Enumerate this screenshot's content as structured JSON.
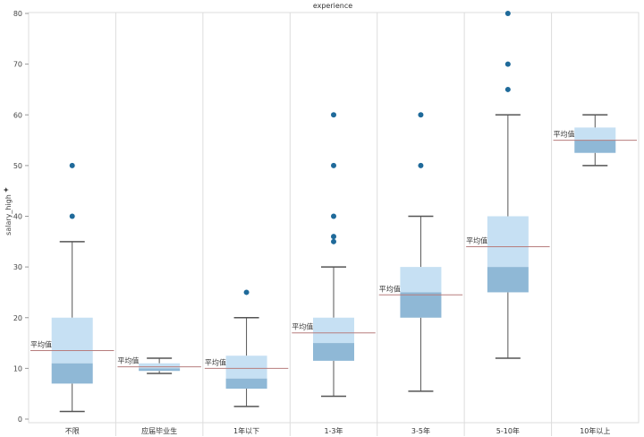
{
  "chart_data": {
    "type": "box",
    "title": "experience",
    "ylabel": "salary_high",
    "ylim": [
      0,
      80
    ],
    "yticks": [
      "0",
      "10",
      "20",
      "30",
      "40",
      "50",
      "60",
      "70",
      "80"
    ],
    "categories": [
      "不限",
      "应届毕业生",
      "1年以下",
      "1-3年",
      "3-5年",
      "5-10年",
      "10年以上"
    ],
    "mean_label": "平均值",
    "boxes": [
      {
        "category": "不限",
        "whisker_low": 1.5,
        "q1": 7,
        "median": 11,
        "q3": 20,
        "whisker_high": 35,
        "mean": 13.5,
        "outliers": [
          40,
          50
        ]
      },
      {
        "category": "应届毕业生",
        "whisker_low": 9,
        "q1": 9.5,
        "median": 10,
        "q3": 11,
        "whisker_high": 12,
        "mean": 10.3,
        "outliers": []
      },
      {
        "category": "1年以下",
        "whisker_low": 2.5,
        "q1": 6,
        "median": 8,
        "q3": 12.5,
        "whisker_high": 20,
        "mean": 10,
        "outliers": [
          25
        ]
      },
      {
        "category": "1-3年",
        "whisker_low": 4.5,
        "q1": 11.5,
        "median": 15,
        "q3": 20,
        "whisker_high": 30,
        "mean": 17,
        "outliers": [
          35,
          36,
          40,
          50,
          60
        ]
      },
      {
        "category": "3-5年",
        "whisker_low": 5.5,
        "q1": 20,
        "median": 25,
        "q3": 30,
        "whisker_high": 40,
        "mean": 24.5,
        "outliers": [
          50,
          60
        ]
      },
      {
        "category": "5-10年",
        "whisker_low": 12,
        "q1": 25,
        "median": 30,
        "q3": 40,
        "whisker_high": 60,
        "mean": 34,
        "outliers": [
          65,
          70,
          80
        ]
      },
      {
        "category": "10年以上",
        "whisker_low": 50,
        "q1": 52.5,
        "median": 55,
        "q3": 57.5,
        "whisker_high": 60,
        "mean": 55,
        "outliers": []
      }
    ],
    "colors": {
      "box_upper": "#c6e0f3",
      "box_lower": "#8fb8d6",
      "whisker": "#555555",
      "outlier": "#1f6a9a",
      "mean_line": "#b77e7e",
      "grid": "#dddddd",
      "axis": "#999999"
    }
  }
}
